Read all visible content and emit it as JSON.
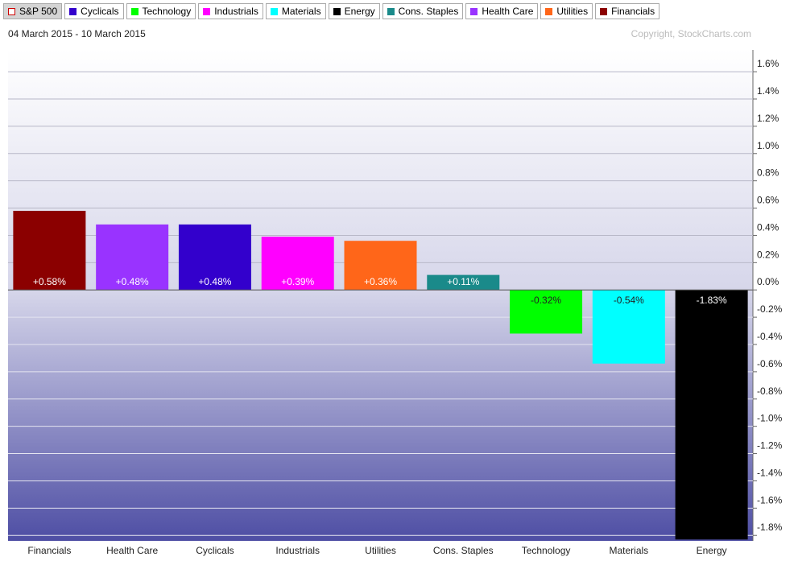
{
  "chart_data": {
    "type": "bar",
    "legend": [
      {
        "name": "S&P 500",
        "color": "#ffffff"
      },
      {
        "name": "Cyclicals",
        "color": "#3300cc"
      },
      {
        "name": "Technology",
        "color": "#00ff00"
      },
      {
        "name": "Industrials",
        "color": "#ff00ff"
      },
      {
        "name": "Materials",
        "color": "#00ffff"
      },
      {
        "name": "Energy",
        "color": "#000000"
      },
      {
        "name": "Cons. Staples",
        "color": "#1a8a8a"
      },
      {
        "name": "Health Care",
        "color": "#9933ff"
      },
      {
        "name": "Utilities",
        "color": "#ff6619"
      },
      {
        "name": "Financials",
        "color": "#8b0000"
      }
    ],
    "subtitle": "04 March 2015 - 10 March 2015",
    "copyright": "Copyright, StockCharts.com",
    "categories": [
      "Financials",
      "Health Care",
      "Cyclicals",
      "Industrials",
      "Utilities",
      "Cons. Staples",
      "Technology",
      "Materials",
      "Energy"
    ],
    "values": [
      0.58,
      0.48,
      0.48,
      0.39,
      0.36,
      0.11,
      -0.32,
      -0.54,
      -1.83
    ],
    "value_labels": [
      "+0.58%",
      "+0.48%",
      "+0.48%",
      "+0.39%",
      "+0.36%",
      "+0.11%",
      "-0.32%",
      "-0.54%",
      "-1.83%"
    ],
    "colors": [
      "#8b0000",
      "#9933ff",
      "#3300cc",
      "#ff00ff",
      "#ff6619",
      "#1a8a8a",
      "#00ff00",
      "#00ffff",
      "#000000"
    ],
    "ylim": [
      -1.84,
      1.76
    ],
    "yticks": [
      {
        "value": 1.6,
        "label": "1.6%"
      },
      {
        "value": 1.4,
        "label": "1.4%"
      },
      {
        "value": 1.2,
        "label": "1.2%"
      },
      {
        "value": 1.0,
        "label": "1.0%"
      },
      {
        "value": 0.8,
        "label": "0.8%"
      },
      {
        "value": 0.6,
        "label": "0.6%"
      },
      {
        "value": 0.4,
        "label": "0.4%"
      },
      {
        "value": 0.2,
        "label": "0.2%"
      },
      {
        "value": 0.0,
        "label": "0.0%"
      },
      {
        "value": -0.2,
        "label": "-0.2%"
      },
      {
        "value": -0.4,
        "label": "-0.4%"
      },
      {
        "value": -0.6,
        "label": "-0.6%"
      },
      {
        "value": -0.8,
        "label": "-0.8%"
      },
      {
        "value": -1.0,
        "label": "-1.0%"
      },
      {
        "value": -1.2,
        "label": "-1.2%"
      },
      {
        "value": -1.4,
        "label": "-1.4%"
      },
      {
        "value": -1.6,
        "label": "-1.6%"
      },
      {
        "value": -1.8,
        "label": "-1.8%"
      }
    ],
    "grid": true
  }
}
